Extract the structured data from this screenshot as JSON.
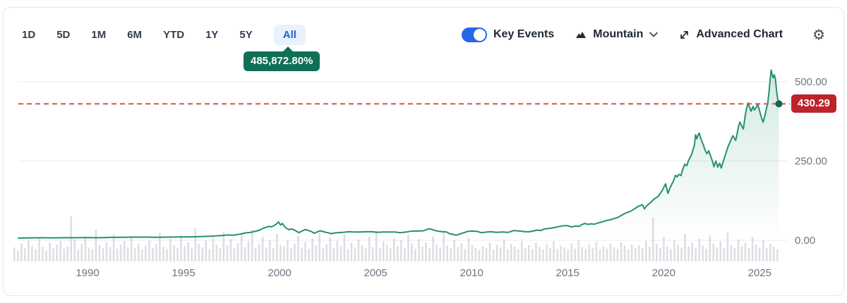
{
  "toolbar": {
    "ranges": [
      "1D",
      "5D",
      "1M",
      "6M",
      "YTD",
      "1Y",
      "5Y",
      "All"
    ],
    "active_range": "All",
    "key_events_label": "Key Events",
    "key_events_on": true,
    "chart_type_label": "Mountain",
    "advanced_chart_label": "Advanced Chart"
  },
  "chart_data": {
    "type": "area",
    "title": "All-time price history (mountain chart with volume)",
    "all_time_return_label": "485,872.80%",
    "current_price": 430.29,
    "current_price_label": "430.29",
    "x_ticks": [
      1990,
      1995,
      2000,
      2005,
      2010,
      2015,
      2020,
      2025
    ],
    "y_ticks": [
      {
        "value": 500,
        "label": "500.00"
      },
      {
        "value": 250,
        "label": "250.00"
      },
      {
        "value": 0,
        "label": "0.00"
      }
    ],
    "x_range": [
      1986.4,
      2026.3
    ],
    "ylim": [
      0,
      550
    ],
    "grid": "horizontal",
    "legend": "none",
    "colors": {
      "line": "#26916f",
      "dot": "#0a6a51",
      "fill_top": "rgba(38,145,111,0.20)",
      "fill_bottom": "rgba(38,145,111,0.0)",
      "volume": "rgba(140,150,162,0.30)",
      "dashed_line": "#d8504d",
      "badge_bg": "#bf232a",
      "accent_blue": "#1a66d9",
      "tooltip_green": "#0f7057",
      "grid": "#e9ebef",
      "tick_text": "#6e7682"
    },
    "series": [
      {
        "name": "price",
        "points": [
          [
            1986.4,
            7
          ],
          [
            1987.0,
            7.5
          ],
          [
            1987.6,
            8
          ],
          [
            1988.2,
            7.5
          ],
          [
            1988.8,
            8
          ],
          [
            1989.4,
            8
          ],
          [
            1990.0,
            8.5
          ],
          [
            1990.6,
            8
          ],
          [
            1991.2,
            9
          ],
          [
            1991.8,
            9.5
          ],
          [
            1992.4,
            10
          ],
          [
            1993.0,
            10
          ],
          [
            1993.6,
            9.5
          ],
          [
            1994.2,
            10
          ],
          [
            1994.8,
            10.5
          ],
          [
            1995.4,
            11
          ],
          [
            1996.0,
            12
          ],
          [
            1996.5,
            13
          ],
          [
            1997.0,
            15
          ],
          [
            1997.3,
            17
          ],
          [
            1997.6,
            16
          ],
          [
            1997.8,
            18
          ],
          [
            1998.0,
            20
          ],
          [
            1998.2,
            23
          ],
          [
            1998.5,
            25
          ],
          [
            1998.7,
            28
          ],
          [
            1998.85,
            30
          ],
          [
            1999.0,
            33
          ],
          [
            1999.15,
            38
          ],
          [
            1999.3,
            41
          ],
          [
            1999.45,
            44
          ],
          [
            1999.55,
            42
          ],
          [
            1999.7,
            46
          ],
          [
            1999.85,
            52
          ],
          [
            1999.95,
            58
          ],
          [
            2000.05,
            48
          ],
          [
            2000.15,
            53
          ],
          [
            2000.25,
            44
          ],
          [
            2000.35,
            38
          ],
          [
            2000.5,
            33
          ],
          [
            2000.6,
            36
          ],
          [
            2000.75,
            33
          ],
          [
            2000.9,
            28
          ],
          [
            2001.0,
            24
          ],
          [
            2001.2,
            30
          ],
          [
            2001.35,
            34
          ],
          [
            2001.5,
            31
          ],
          [
            2001.65,
            28
          ],
          [
            2001.8,
            22
          ],
          [
            2001.95,
            26
          ],
          [
            2002.1,
            30
          ],
          [
            2002.3,
            27
          ],
          [
            2002.5,
            24
          ],
          [
            2002.7,
            21
          ],
          [
            2002.85,
            23
          ],
          [
            2003.0,
            24
          ],
          [
            2003.3,
            25
          ],
          [
            2003.6,
            27
          ],
          [
            2003.9,
            26
          ],
          [
            2004.2,
            26
          ],
          [
            2004.5,
            27
          ],
          [
            2004.8,
            27
          ],
          [
            2005.1,
            25
          ],
          [
            2005.4,
            26
          ],
          [
            2005.7,
            26
          ],
          [
            2006.0,
            26
          ],
          [
            2006.3,
            24
          ],
          [
            2006.6,
            26
          ],
          [
            2006.9,
            29
          ],
          [
            2007.2,
            29
          ],
          [
            2007.5,
            30
          ],
          [
            2007.75,
            36
          ],
          [
            2007.9,
            35
          ],
          [
            2008.0,
            33
          ],
          [
            2008.2,
            29
          ],
          [
            2008.5,
            27
          ],
          [
            2008.7,
            26
          ],
          [
            2008.85,
            21
          ],
          [
            2009.0,
            19
          ],
          [
            2009.2,
            16
          ],
          [
            2009.4,
            20
          ],
          [
            2009.6,
            24
          ],
          [
            2009.8,
            28
          ],
          [
            2010.0,
            29
          ],
          [
            2010.3,
            28
          ],
          [
            2010.5,
            24
          ],
          [
            2010.8,
            26
          ],
          [
            2011.0,
            27
          ],
          [
            2011.3,
            25
          ],
          [
            2011.6,
            26
          ],
          [
            2011.9,
            25
          ],
          [
            2012.2,
            31
          ],
          [
            2012.5,
            29
          ],
          [
            2012.8,
            27
          ],
          [
            2013.0,
            27
          ],
          [
            2013.2,
            29
          ],
          [
            2013.4,
            32
          ],
          [
            2013.6,
            31
          ],
          [
            2013.8,
            36
          ],
          [
            2014.0,
            37
          ],
          [
            2014.3,
            40
          ],
          [
            2014.6,
            44
          ],
          [
            2014.8,
            46
          ],
          [
            2015.0,
            46
          ],
          [
            2015.2,
            42
          ],
          [
            2015.4,
            45
          ],
          [
            2015.6,
            44
          ],
          [
            2015.75,
            50
          ],
          [
            2015.9,
            53
          ],
          [
            2016.05,
            50
          ],
          [
            2016.2,
            52
          ],
          [
            2016.4,
            51
          ],
          [
            2016.6,
            55
          ],
          [
            2016.8,
            58
          ],
          [
            2017.0,
            62
          ],
          [
            2017.3,
            66
          ],
          [
            2017.6,
            72
          ],
          [
            2017.9,
            82
          ],
          [
            2018.1,
            88
          ],
          [
            2018.3,
            92
          ],
          [
            2018.5,
            100
          ],
          [
            2018.7,
            108
          ],
          [
            2018.9,
            112
          ],
          [
            2019.0,
            99
          ],
          [
            2019.1,
            108
          ],
          [
            2019.3,
            118
          ],
          [
            2019.5,
            130
          ],
          [
            2019.7,
            138
          ],
          [
            2019.85,
            150
          ],
          [
            2019.95,
            160
          ],
          [
            2020.1,
            178
          ],
          [
            2020.22,
            148
          ],
          [
            2020.35,
            168
          ],
          [
            2020.5,
            186
          ],
          [
            2020.62,
            205
          ],
          [
            2020.7,
            200
          ],
          [
            2020.8,
            208
          ],
          [
            2020.9,
            204
          ],
          [
            2021.0,
            225
          ],
          [
            2021.1,
            240
          ],
          [
            2021.2,
            235
          ],
          [
            2021.3,
            252
          ],
          [
            2021.45,
            270
          ],
          [
            2021.55,
            290
          ],
          [
            2021.6,
            300
          ],
          [
            2021.66,
            333
          ],
          [
            2021.72,
            320
          ],
          [
            2021.78,
            330
          ],
          [
            2021.85,
            338
          ],
          [
            2021.95,
            318
          ],
          [
            2022.07,
            300
          ],
          [
            2022.15,
            285
          ],
          [
            2022.25,
            273
          ],
          [
            2022.35,
            282
          ],
          [
            2022.45,
            265
          ],
          [
            2022.55,
            248
          ],
          [
            2022.62,
            232
          ],
          [
            2022.72,
            250
          ],
          [
            2022.82,
            231
          ],
          [
            2022.92,
            243
          ],
          [
            2023.0,
            228
          ],
          [
            2023.1,
            248
          ],
          [
            2023.2,
            267
          ],
          [
            2023.35,
            295
          ],
          [
            2023.5,
            316
          ],
          [
            2023.6,
            330
          ],
          [
            2023.68,
            322
          ],
          [
            2023.75,
            315
          ],
          [
            2023.82,
            335
          ],
          [
            2023.9,
            360
          ],
          [
            2023.97,
            373
          ],
          [
            2024.05,
            362
          ],
          [
            2024.15,
            351
          ],
          [
            2024.25,
            395
          ],
          [
            2024.32,
            418
          ],
          [
            2024.4,
            433
          ],
          [
            2024.5,
            415
          ],
          [
            2024.55,
            407
          ],
          [
            2024.65,
            422
          ],
          [
            2024.72,
            411
          ],
          [
            2024.8,
            417
          ],
          [
            2024.9,
            429
          ],
          [
            2025.0,
            407
          ],
          [
            2025.1,
            385
          ],
          [
            2025.18,
            373
          ],
          [
            2025.28,
            395
          ],
          [
            2025.36,
            418
          ],
          [
            2025.42,
            433
          ],
          [
            2025.48,
            465
          ],
          [
            2025.54,
            505
          ],
          [
            2025.6,
            537
          ],
          [
            2025.65,
            522
          ],
          [
            2025.7,
            512
          ],
          [
            2025.76,
            522
          ],
          [
            2025.82,
            508
          ],
          [
            2025.88,
            470
          ],
          [
            2025.94,
            445
          ],
          [
            2026.0,
            430.29
          ]
        ]
      }
    ],
    "volume": [
      0.3,
      0.22,
      0.38,
      0.28,
      0.45,
      0.33,
      0.26,
      0.52,
      0.31,
      0.24,
      0.41,
      0.29,
      0.36,
      0.44,
      0.27,
      0.33,
      0.97,
      0.48,
      0.25,
      0.38,
      0.55,
      0.3,
      0.26,
      0.68,
      0.35,
      0.28,
      0.42,
      0.31,
      0.58,
      0.27,
      0.36,
      0.44,
      0.3,
      0.52,
      0.28,
      0.38,
      0.26,
      0.34,
      0.45,
      0.29,
      0.38,
      0.62,
      0.31,
      0.27,
      0.49,
      0.35,
      0.28,
      0.56,
      0.33,
      0.41,
      0.29,
      0.72,
      0.38,
      0.3,
      0.45,
      0.27,
      0.52,
      0.36,
      0.29,
      0.63,
      0.34,
      0.48,
      0.28,
      0.39,
      0.57,
      0.31,
      0.44,
      0.68,
      0.29,
      0.37,
      0.53,
      0.3,
      0.46,
      0.28,
      0.59,
      0.35,
      0.32,
      0.45,
      0.28,
      0.38,
      0.55,
      0.3,
      0.42,
      0.27,
      0.49,
      0.34,
      0.61,
      0.29,
      0.37,
      0.52,
      0.28,
      0.44,
      0.33,
      0.58,
      0.27,
      0.4,
      0.3,
      0.47,
      0.35,
      0.28,
      0.53,
      0.31,
      0.66,
      0.29,
      0.43,
      0.36,
      0.28,
      0.5,
      0.33,
      0.45,
      0.29,
      0.57,
      0.38,
      0.27,
      0.48,
      0.32,
      0.41,
      0.28,
      0.54,
      0.36,
      0.3,
      0.62,
      0.34,
      0.28,
      0.46,
      0.31,
      0.39,
      0.27,
      0.51,
      0.35,
      0.29,
      0.25,
      0.33,
      0.28,
      0.41,
      0.26,
      0.36,
      0.3,
      0.47,
      0.27,
      0.38,
      0.32,
      0.26,
      0.44,
      0.29,
      0.35,
      0.27,
      0.4,
      0.31,
      0.26,
      0.37,
      0.29,
      0.43,
      0.27,
      0.34,
      0.3,
      0.26,
      0.39,
      0.28,
      0.45,
      0.31,
      0.27,
      0.36,
      0.29,
      0.42,
      0.26,
      0.33,
      0.28,
      0.38,
      0.3,
      0.27,
      0.41,
      0.34,
      0.26,
      0.37,
      0.29,
      0.35,
      0.28,
      0.44,
      0.31,
      0.95,
      0.38,
      0.29,
      0.52,
      0.33,
      0.27,
      0.46,
      0.36,
      0.3,
      0.58,
      0.32,
      0.41,
      0.28,
      0.49,
      0.34,
      0.27,
      0.55,
      0.38,
      0.31,
      0.44,
      0.29,
      0.62,
      0.35,
      0.28,
      0.47,
      0.33,
      0.4,
      0.29,
      0.53,
      0.36,
      0.3,
      0.45,
      0.28,
      0.38,
      0.32,
      0.26
    ]
  }
}
